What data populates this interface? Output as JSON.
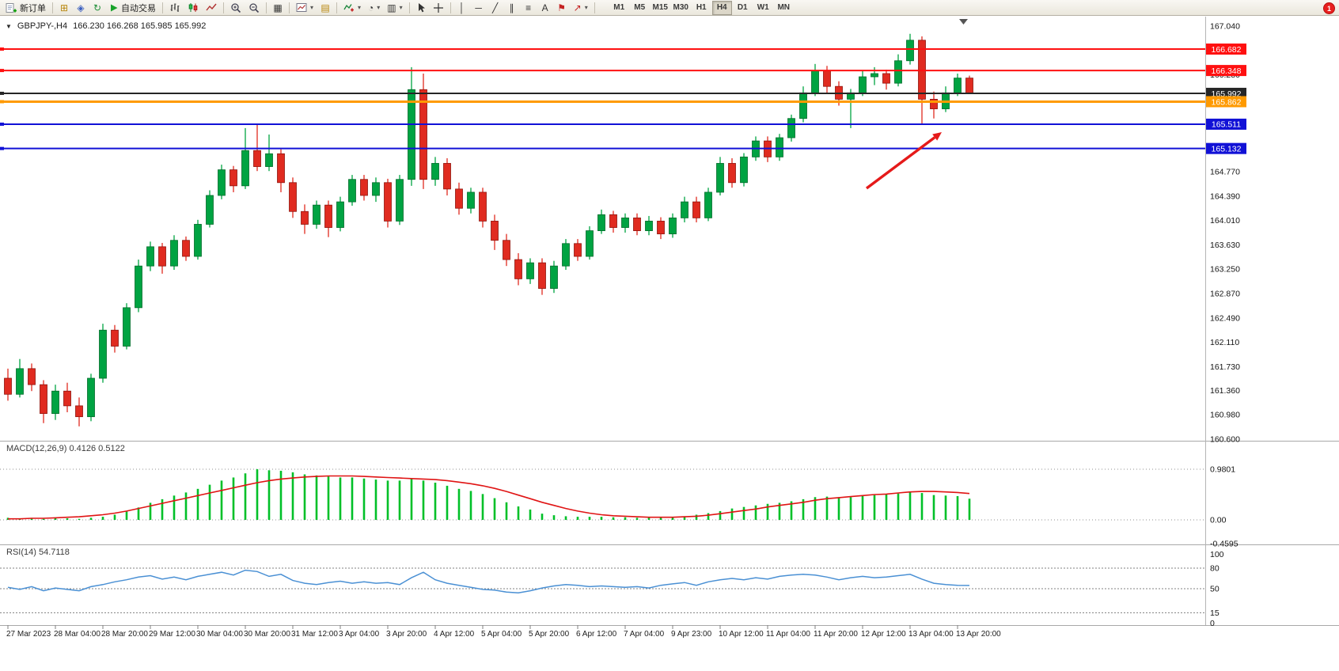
{
  "icons": {
    "one_click": "▼",
    "market_watch": "⊞",
    "navigator": "◈",
    "terminal": "↻",
    "tile_windows": "▦",
    "profiles": "▤",
    "templates": "▥",
    "periods": "◔",
    "fibonacci": "≡",
    "channel": "∥",
    "vertical_line": "│",
    "horizontal_line": "─",
    "trendline": "╱",
    "text_tool": "A",
    "text_label": "⚑",
    "arrows_tool": "↗",
    "caret": "▾"
  },
  "toolbar": {
    "new_order_label": "新订单",
    "auto_trading_label": "自动交易",
    "timeframes": [
      "M1",
      "M5",
      "M15",
      "M30",
      "H1",
      "H4",
      "D1",
      "W1",
      "MN"
    ],
    "active_timeframe": "H4",
    "notification_count": "1"
  },
  "chart": {
    "symbol_period": "GBPJPY-,H4",
    "ohlc_text": "166.230 166.268 165.985 165.992"
  },
  "chart_data": {
    "type": "candlestick",
    "symbol": "GBPJPY-",
    "timeframe": "H4",
    "last_bar": {
      "open": 166.23,
      "high": 166.268,
      "low": 165.985,
      "close": 165.992
    },
    "colors": {
      "up": "#00a342",
      "up_border": "#006b2a",
      "down": "#e02b20",
      "down_border": "#8f140d",
      "macd_hist": "#00c028",
      "macd_signal": "#e01414",
      "rsi_line": "#4a90d4"
    },
    "price_axis": {
      "min": 160.6,
      "max": 167.04,
      "step": 0.38,
      "labels": [
        167.04,
        166.28,
        164.77,
        164.39,
        164.01,
        163.63,
        163.25,
        162.87,
        162.49,
        162.11,
        161.73,
        161.36,
        160.98,
        160.6
      ]
    },
    "hlines": [
      {
        "price": 166.682,
        "color": "#ff1010",
        "width": 2
      },
      {
        "price": 166.348,
        "color": "#ff1010",
        "width": 2
      },
      {
        "price": 165.992,
        "color": "#262626",
        "width": 2
      },
      {
        "price": 165.862,
        "color": "#ff9a00",
        "width": 3
      },
      {
        "price": 165.511,
        "color": "#1111d6",
        "width": 2
      },
      {
        "price": 165.132,
        "color": "#1111d6",
        "width": 2
      }
    ],
    "candles": [
      [
        161.55,
        161.7,
        161.2,
        161.3
      ],
      [
        161.3,
        161.85,
        161.25,
        161.7
      ],
      [
        161.7,
        161.78,
        161.35,
        161.45
      ],
      [
        161.45,
        161.52,
        160.85,
        161.0
      ],
      [
        161.0,
        161.45,
        160.9,
        161.35
      ],
      [
        161.35,
        161.48,
        161.02,
        161.12
      ],
      [
        161.12,
        161.25,
        160.8,
        160.95
      ],
      [
        160.95,
        161.62,
        160.88,
        161.55
      ],
      [
        161.55,
        162.4,
        161.48,
        162.3
      ],
      [
        162.3,
        162.38,
        161.95,
        162.05
      ],
      [
        162.05,
        162.72,
        162.0,
        162.65
      ],
      [
        162.65,
        163.4,
        162.58,
        163.3
      ],
      [
        163.3,
        163.68,
        163.22,
        163.6
      ],
      [
        163.6,
        163.66,
        163.18,
        163.3
      ],
      [
        163.3,
        163.78,
        163.24,
        163.7
      ],
      [
        163.7,
        163.76,
        163.38,
        163.45
      ],
      [
        163.45,
        164.02,
        163.4,
        163.95
      ],
      [
        163.95,
        164.48,
        163.9,
        164.4
      ],
      [
        164.4,
        164.88,
        164.34,
        164.8
      ],
      [
        164.8,
        164.86,
        164.45,
        164.55
      ],
      [
        164.55,
        165.45,
        164.5,
        165.1
      ],
      [
        165.1,
        165.5,
        164.78,
        164.85
      ],
      [
        164.85,
        165.35,
        164.78,
        165.05
      ],
      [
        165.05,
        165.12,
        164.45,
        164.6
      ],
      [
        164.6,
        164.68,
        164.05,
        164.15
      ],
      [
        164.15,
        164.26,
        163.8,
        163.95
      ],
      [
        163.95,
        164.32,
        163.88,
        164.25
      ],
      [
        164.25,
        164.32,
        163.75,
        163.9
      ],
      [
        163.9,
        164.38,
        163.84,
        164.3
      ],
      [
        164.3,
        164.72,
        164.24,
        164.65
      ],
      [
        164.65,
        164.72,
        164.32,
        164.4
      ],
      [
        164.4,
        164.68,
        164.3,
        164.6
      ],
      [
        164.6,
        164.66,
        163.9,
        164.0
      ],
      [
        164.0,
        164.72,
        163.94,
        164.65
      ],
      [
        164.65,
        166.4,
        164.55,
        166.05
      ],
      [
        166.05,
        166.3,
        164.5,
        164.65
      ],
      [
        164.65,
        165.0,
        164.55,
        164.9
      ],
      [
        164.9,
        164.98,
        164.4,
        164.5
      ],
      [
        164.5,
        164.6,
        164.1,
        164.2
      ],
      [
        164.2,
        164.52,
        164.12,
        164.45
      ],
      [
        164.45,
        164.52,
        163.9,
        164.0
      ],
      [
        164.0,
        164.1,
        163.55,
        163.7
      ],
      [
        163.7,
        163.8,
        163.3,
        163.4
      ],
      [
        163.4,
        163.5,
        163.0,
        163.1
      ],
      [
        163.1,
        163.42,
        163.02,
        163.35
      ],
      [
        163.35,
        163.42,
        162.85,
        162.95
      ],
      [
        162.95,
        163.38,
        162.88,
        163.3
      ],
      [
        163.3,
        163.72,
        163.24,
        163.65
      ],
      [
        163.65,
        163.72,
        163.38,
        163.45
      ],
      [
        163.45,
        163.92,
        163.4,
        163.85
      ],
      [
        163.85,
        164.18,
        163.8,
        164.1
      ],
      [
        164.1,
        164.16,
        163.82,
        163.9
      ],
      [
        163.9,
        164.12,
        163.82,
        164.05
      ],
      [
        164.05,
        164.12,
        163.78,
        163.85
      ],
      [
        163.85,
        164.08,
        163.78,
        164.0
      ],
      [
        164.0,
        164.06,
        163.72,
        163.8
      ],
      [
        163.8,
        164.12,
        163.74,
        164.05
      ],
      [
        164.05,
        164.38,
        163.98,
        164.3
      ],
      [
        164.3,
        164.38,
        163.98,
        164.05
      ],
      [
        164.05,
        164.52,
        164.0,
        164.45
      ],
      [
        164.45,
        165.0,
        164.4,
        164.9
      ],
      [
        164.9,
        164.98,
        164.52,
        164.6
      ],
      [
        164.6,
        165.06,
        164.54,
        165.0
      ],
      [
        165.0,
        165.32,
        164.94,
        165.25
      ],
      [
        165.25,
        165.32,
        164.92,
        165.0
      ],
      [
        165.0,
        165.36,
        164.94,
        165.3
      ],
      [
        165.3,
        165.66,
        165.24,
        165.6
      ],
      [
        165.6,
        166.1,
        165.54,
        166.0
      ],
      [
        166.0,
        166.45,
        165.95,
        166.35
      ],
      [
        166.35,
        166.42,
        166.0,
        166.1
      ],
      [
        166.1,
        166.18,
        165.8,
        165.9
      ],
      [
        165.9,
        166.06,
        165.45,
        166.0
      ],
      [
        166.0,
        166.35,
        165.95,
        166.25
      ],
      [
        166.25,
        166.4,
        166.12,
        166.3
      ],
      [
        166.3,
        166.36,
        166.05,
        166.15
      ],
      [
        166.15,
        166.6,
        166.1,
        166.5
      ],
      [
        166.5,
        166.92,
        166.44,
        166.82
      ],
      [
        166.82,
        166.88,
        165.5,
        165.9
      ],
      [
        165.9,
        166.02,
        165.6,
        165.75
      ],
      [
        165.75,
        166.1,
        165.7,
        166.0
      ],
      [
        166.0,
        166.3,
        165.95,
        166.23
      ],
      [
        166.23,
        166.268,
        165.985,
        165.992
      ]
    ],
    "x_labels": [
      "27 Mar 2023",
      "28 Mar 04:00",
      "28 Mar 20:00",
      "29 Mar 12:00",
      "30 Mar 04:00",
      "30 Mar 20:00",
      "31 Mar 12:00",
      "3 Apr 04:00",
      "3 Apr 20:00",
      "4 Apr 12:00",
      "5 Apr 04:00",
      "5 Apr 20:00",
      "6 Apr 12:00",
      "7 Apr 04:00",
      "9 Apr 23:00",
      "10 Apr 12:00",
      "11 Apr 04:00",
      "11 Apr 20:00",
      "12 Apr 12:00",
      "13 Apr 04:00",
      "13 Apr 20:00"
    ],
    "macd": {
      "display": "MACD(12,26,9) 0.4126 0.5122",
      "current_macd": 0.4126,
      "current_signal": 0.5122,
      "axis_values": [
        0.9801,
        0,
        -0.4595
      ],
      "axis_labels": [
        "0.9801",
        "0.00",
        "-0.4595"
      ],
      "hist": [
        0.04,
        0.03,
        0.03,
        0.02,
        0.03,
        0.03,
        0.02,
        0.04,
        0.06,
        0.1,
        0.16,
        0.24,
        0.33,
        0.4,
        0.47,
        0.53,
        0.6,
        0.68,
        0.76,
        0.82,
        0.9,
        0.98,
        0.96,
        0.95,
        0.92,
        0.88,
        0.86,
        0.84,
        0.82,
        0.82,
        0.8,
        0.78,
        0.76,
        0.76,
        0.8,
        0.76,
        0.72,
        0.66,
        0.6,
        0.56,
        0.5,
        0.42,
        0.34,
        0.26,
        0.2,
        0.12,
        0.09,
        0.07,
        0.06,
        0.06,
        0.06,
        0.05,
        0.05,
        0.04,
        0.04,
        0.04,
        0.05,
        0.07,
        0.1,
        0.13,
        0.17,
        0.22,
        0.25,
        0.28,
        0.31,
        0.33,
        0.36,
        0.4,
        0.44,
        0.45,
        0.44,
        0.44,
        0.46,
        0.48,
        0.49,
        0.51,
        0.55,
        0.52,
        0.48,
        0.47,
        0.46,
        0.41
      ],
      "signal": [
        0.02,
        0.02,
        0.03,
        0.03,
        0.04,
        0.05,
        0.06,
        0.08,
        0.1,
        0.13,
        0.17,
        0.22,
        0.27,
        0.32,
        0.37,
        0.42,
        0.47,
        0.52,
        0.57,
        0.62,
        0.67,
        0.72,
        0.76,
        0.79,
        0.81,
        0.83,
        0.84,
        0.85,
        0.85,
        0.85,
        0.84,
        0.83,
        0.82,
        0.81,
        0.8,
        0.79,
        0.78,
        0.76,
        0.73,
        0.7,
        0.66,
        0.61,
        0.55,
        0.48,
        0.41,
        0.34,
        0.28,
        0.22,
        0.17,
        0.13,
        0.1,
        0.08,
        0.07,
        0.06,
        0.05,
        0.05,
        0.05,
        0.06,
        0.07,
        0.09,
        0.12,
        0.15,
        0.18,
        0.21,
        0.25,
        0.28,
        0.31,
        0.34,
        0.38,
        0.41,
        0.43,
        0.45,
        0.47,
        0.49,
        0.5,
        0.52,
        0.54,
        0.55,
        0.55,
        0.54,
        0.53,
        0.51
      ]
    },
    "rsi": {
      "display": "RSI(14) 54.7118",
      "current": 54.7118,
      "levels": [
        80,
        50,
        15
      ],
      "axis": [
        {
          "label": "100",
          "value": 100
        },
        {
          "label": "80",
          "value": 80
        },
        {
          "label": "50",
          "value": 50
        },
        {
          "label": "15",
          "value": 15
        },
        {
          "label": "0",
          "value": 0
        }
      ],
      "values": [
        52,
        49,
        53,
        47,
        51,
        49,
        47,
        53,
        56,
        60,
        63,
        67,
        69,
        64,
        67,
        63,
        68,
        71,
        74,
        70,
        77,
        75,
        68,
        71,
        62,
        58,
        56,
        59,
        61,
        58,
        60,
        58,
        59,
        56,
        66,
        74,
        63,
        58,
        55,
        52,
        49,
        48,
        45,
        44,
        47,
        51,
        54,
        56,
        55,
        53,
        54,
        53,
        52,
        53,
        51,
        55,
        57,
        59,
        55,
        60,
        63,
        65,
        63,
        66,
        64,
        68,
        70,
        71,
        70,
        67,
        63,
        66,
        68,
        66,
        67,
        69,
        71,
        64,
        58,
        56,
        55,
        54.7
      ]
    },
    "annotation_arrow": {
      "from": [
        1095,
        217
      ],
      "to": [
        1190,
        146
      ],
      "color": "#e51a1a"
    }
  }
}
